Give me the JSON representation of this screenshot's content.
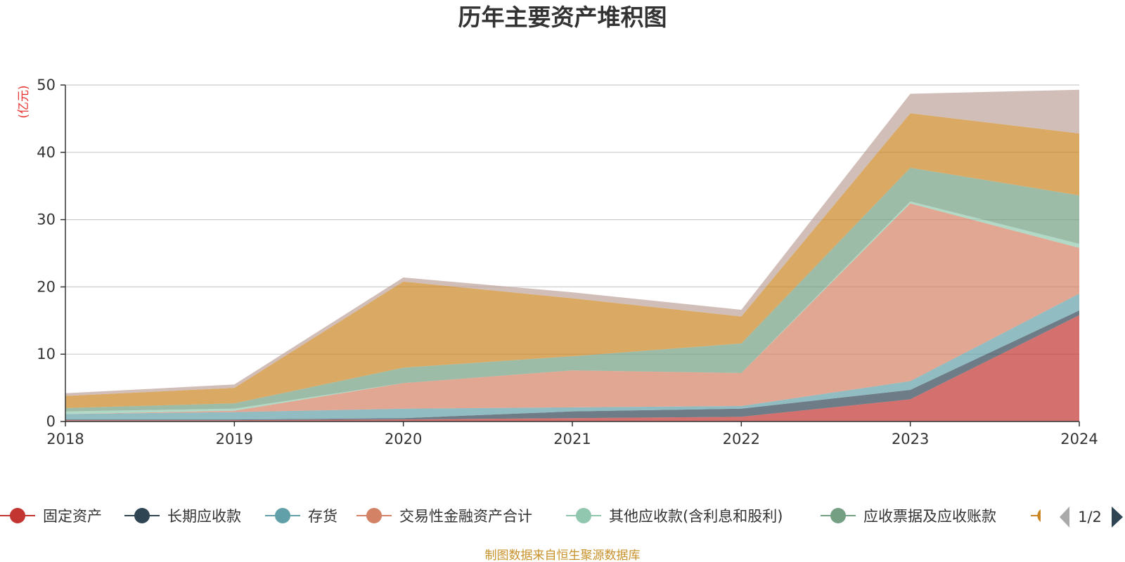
{
  "chart_data": {
    "type": "area",
    "stacked": true,
    "title": "历年主要资产堆积图",
    "ylabel": "(亿元)",
    "ylim": [
      0,
      50
    ],
    "yticks": [
      0,
      10,
      20,
      30,
      40,
      50
    ],
    "categories": [
      "2018",
      "2019",
      "2020",
      "2021",
      "2022",
      "2023",
      "2024"
    ],
    "series": [
      {
        "name": "固定资产",
        "color": "#c23531",
        "values": [
          0.2,
          0.2,
          0.3,
          0.5,
          0.7,
          3.3,
          15.8
        ]
      },
      {
        "name": "长期应收款",
        "color": "#2f4554",
        "values": [
          0.1,
          0.1,
          0.2,
          1.0,
          1.2,
          1.4,
          0.7
        ]
      },
      {
        "name": "存货",
        "color": "#61a0a8",
        "values": [
          0.8,
          1.1,
          1.4,
          0.6,
          0.4,
          1.3,
          2.5
        ]
      },
      {
        "name": "交易性金融资产合计",
        "color": "#d48265",
        "values": [
          0.0,
          0.2,
          3.8,
          5.5,
          4.9,
          26.4,
          6.8
        ]
      },
      {
        "name": "其他应收款(含利息和股利)",
        "color": "#91c7ae",
        "values": [
          0.4,
          0.3,
          0.0,
          0.0,
          0.0,
          0.3,
          0.6
        ]
      },
      {
        "name": "应收票据及应收账款",
        "color": "#749f83",
        "values": [
          0.5,
          0.8,
          2.3,
          2.1,
          4.4,
          5.0,
          7.2
        ]
      },
      {
        "name": "",
        "color": "#ca8622",
        "values": [
          1.8,
          2.3,
          12.8,
          8.6,
          4.0,
          8.1,
          9.2
        ]
      },
      {
        "name": "",
        "color": "#bda29a",
        "values": [
          0.4,
          0.5,
          0.6,
          0.9,
          1.0,
          2.9,
          6.5
        ]
      }
    ],
    "legend": {
      "placement": "bottom",
      "page": "1/2"
    },
    "grid": true
  },
  "footer": {
    "source": "制图数据来自恒生聚源数据库"
  }
}
